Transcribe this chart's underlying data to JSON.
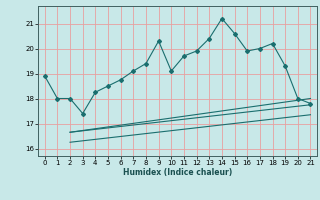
{
  "xlabel": "Humidex (Indice chaleur)",
  "background_color": "#c8e8e8",
  "grid_color": "#e8a0a0",
  "line_color": "#1a6e6e",
  "xlim": [
    -0.5,
    21.5
  ],
  "ylim": [
    15.7,
    21.7
  ],
  "yticks": [
    16,
    17,
    18,
    19,
    20,
    21
  ],
  "xticks": [
    0,
    1,
    2,
    3,
    4,
    5,
    6,
    7,
    8,
    9,
    10,
    11,
    12,
    13,
    14,
    15,
    16,
    17,
    18,
    19,
    20,
    21
  ],
  "series1_x": [
    0,
    1,
    2,
    3,
    4,
    5,
    6,
    7,
    8,
    9,
    10,
    11,
    12,
    13,
    14,
    15,
    16,
    17,
    18,
    19,
    20,
    21
  ],
  "series1_y": [
    18.9,
    18.0,
    18.0,
    17.4,
    18.25,
    18.5,
    18.75,
    19.1,
    19.4,
    20.3,
    19.1,
    19.7,
    19.9,
    20.4,
    21.2,
    20.6,
    19.9,
    20.0,
    20.2,
    19.3,
    18.0,
    17.8
  ],
  "series2_x": [
    2,
    21
  ],
  "series2_y": [
    16.65,
    18.0
  ],
  "series3_x": [
    2,
    21
  ],
  "series3_y": [
    16.65,
    17.75
  ],
  "series4_x": [
    2,
    21
  ],
  "series4_y": [
    16.25,
    17.35
  ]
}
